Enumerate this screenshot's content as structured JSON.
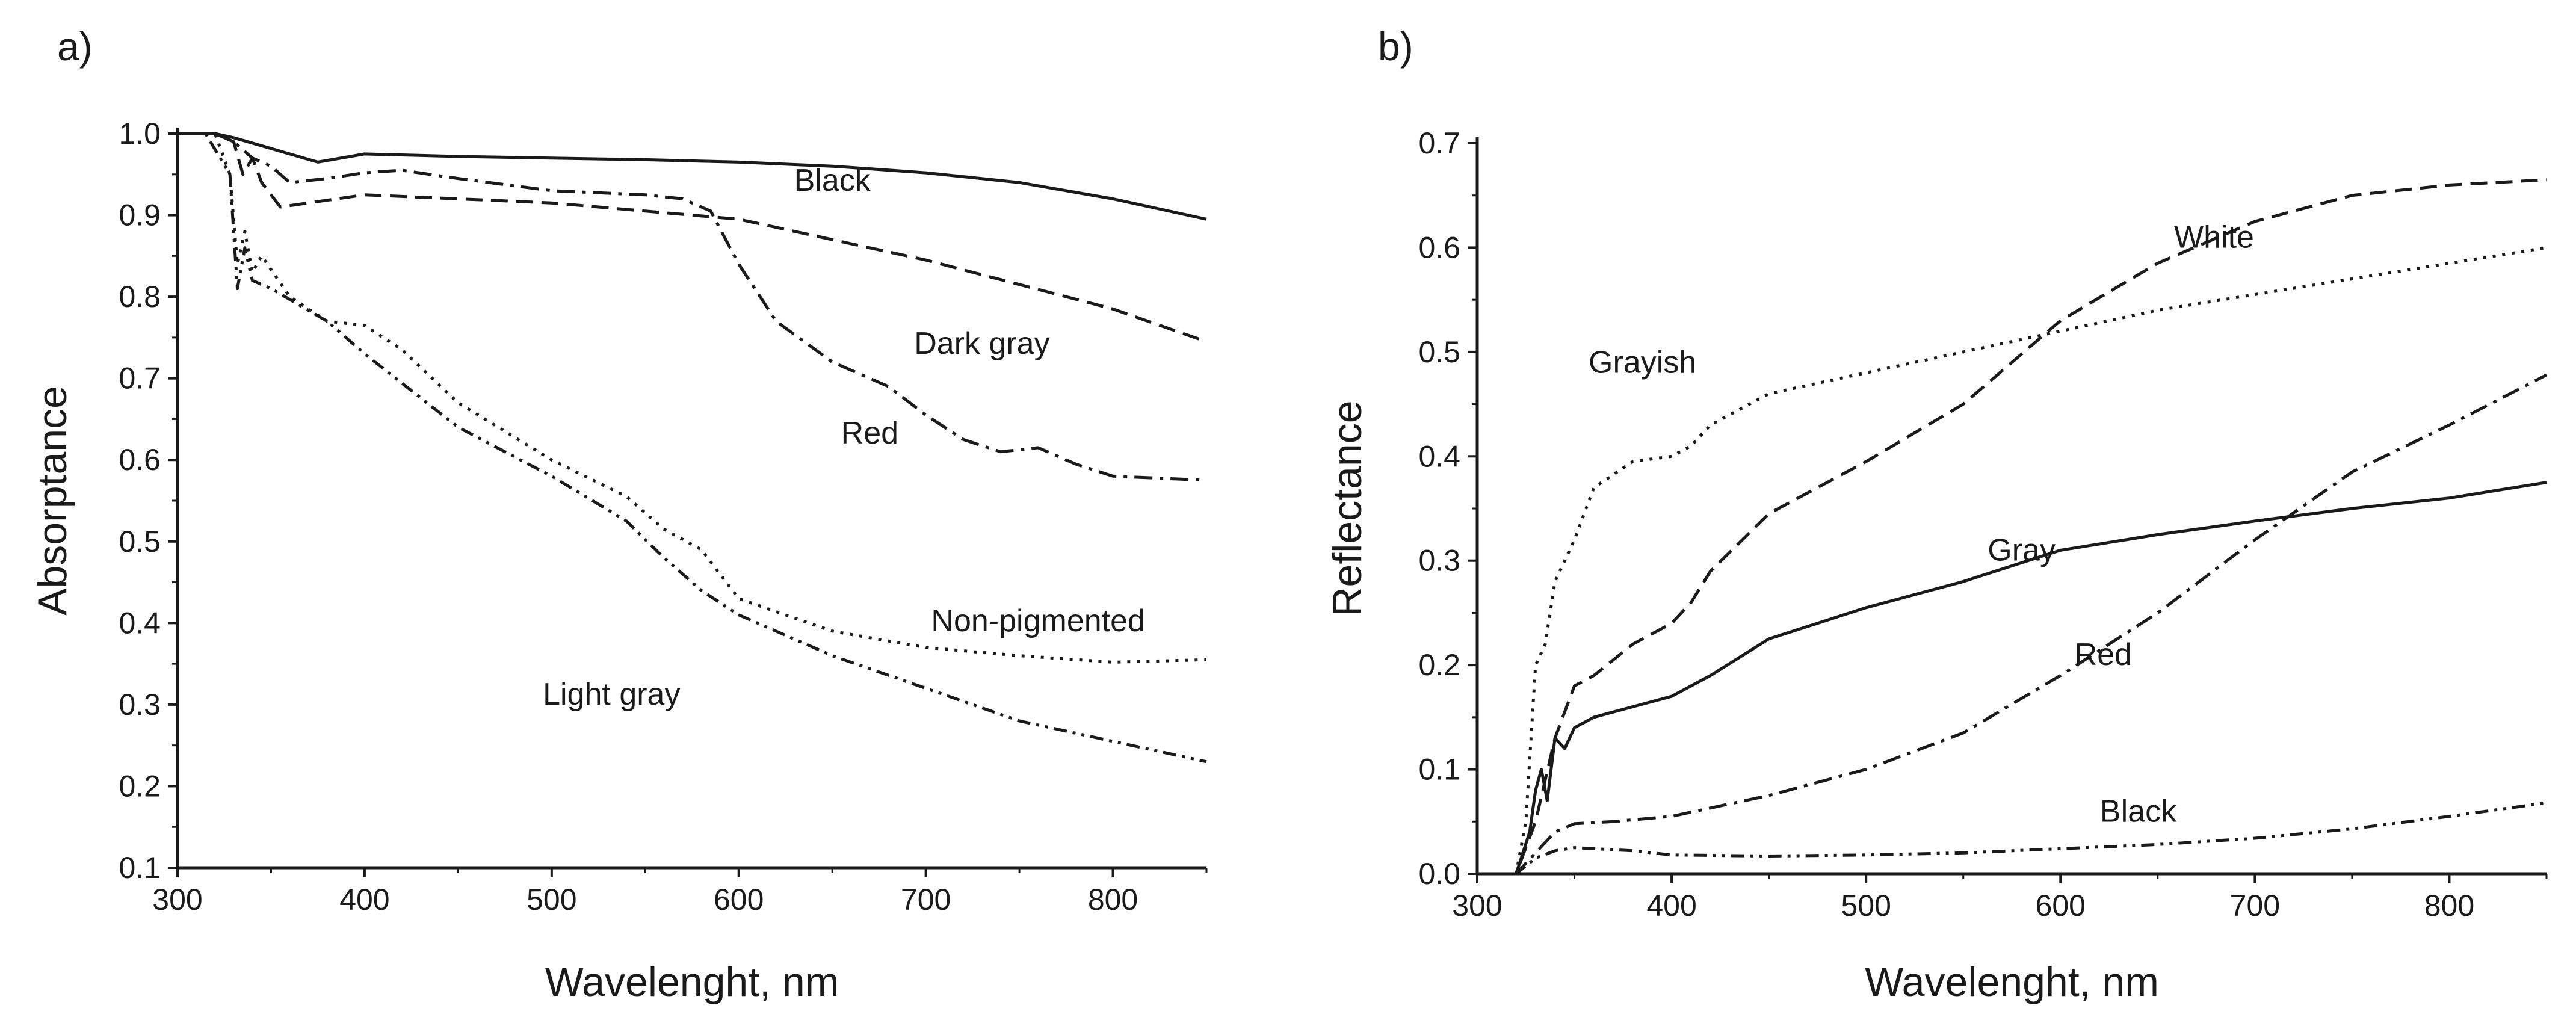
{
  "chart_data": [
    {
      "type": "line",
      "panel_label": "a)",
      "xlabel": "Wavelenght, nm",
      "ylabel": "Absorptance",
      "xlim": [
        300,
        850
      ],
      "ylim": [
        0.1,
        1.0
      ],
      "grid": false,
      "x_ticks": [
        300,
        400,
        500,
        600,
        700,
        800
      ],
      "y_ticks": [
        0.1,
        0.2,
        0.3,
        0.4,
        0.5,
        0.6,
        0.7,
        0.8,
        0.9,
        1.0
      ],
      "x_tick_labels": [
        "300",
        "400",
        "500",
        "600",
        "700",
        "800"
      ],
      "y_tick_labels": [
        "0.1",
        "0.2",
        "0.3",
        "0.4",
        "0.5",
        "0.6",
        "0.7",
        "0.8",
        "0.9",
        "1.0"
      ],
      "series": [
        {
          "name": "Black",
          "label": "Black",
          "dash": "solid",
          "label_at": [
            650,
            0.93
          ],
          "x": [
            300,
            320,
            330,
            345,
            360,
            375,
            400,
            450,
            500,
            550,
            600,
            650,
            700,
            750,
            800,
            850
          ],
          "y": [
            1.0,
            1.0,
            0.995,
            0.985,
            0.975,
            0.965,
            0.975,
            0.972,
            0.97,
            0.968,
            0.965,
            0.96,
            0.952,
            0.94,
            0.92,
            0.895
          ]
        },
        {
          "name": "Dark gray",
          "label": "Dark gray",
          "dash": "dashed",
          "label_at": [
            730,
            0.73
          ],
          "x": [
            300,
            320,
            330,
            335,
            340,
            345,
            355,
            370,
            400,
            450,
            500,
            550,
            600,
            650,
            700,
            750,
            800,
            850
          ],
          "y": [
            1.0,
            1.0,
            0.99,
            0.95,
            0.97,
            0.94,
            0.91,
            0.915,
            0.925,
            0.92,
            0.915,
            0.905,
            0.895,
            0.87,
            0.845,
            0.815,
            0.785,
            0.745
          ]
        },
        {
          "name": "Red",
          "label": "Red",
          "dash": "dashdot",
          "label_at": [
            670,
            0.62
          ],
          "x": [
            300,
            320,
            330,
            340,
            350,
            360,
            380,
            400,
            420,
            450,
            500,
            550,
            570,
            585,
            600,
            620,
            650,
            680,
            700,
            720,
            740,
            760,
            780,
            800,
            850
          ],
          "y": [
            1.0,
            1.0,
            0.99,
            0.97,
            0.96,
            0.94,
            0.945,
            0.952,
            0.955,
            0.945,
            0.93,
            0.925,
            0.92,
            0.905,
            0.84,
            0.77,
            0.72,
            0.69,
            0.655,
            0.625,
            0.61,
            0.615,
            0.595,
            0.58,
            0.575
          ]
        },
        {
          "name": "Non-pigmented",
          "label": "Non-pigmented",
          "dash": "dotted",
          "label_at": [
            760,
            0.39
          ],
          "x": [
            300,
            320,
            328,
            332,
            336,
            340,
            345,
            360,
            380,
            400,
            420,
            450,
            500,
            540,
            560,
            580,
            600,
            650,
            700,
            750,
            800,
            850
          ],
          "y": [
            1.0,
            1.0,
            0.95,
            0.84,
            0.88,
            0.83,
            0.85,
            0.8,
            0.77,
            0.765,
            0.735,
            0.67,
            0.6,
            0.555,
            0.515,
            0.49,
            0.43,
            0.39,
            0.37,
            0.36,
            0.352,
            0.355
          ]
        },
        {
          "name": "Light gray",
          "label": "Light gray",
          "dash": "dashdotdot",
          "label_at": [
            532,
            0.3
          ],
          "x": [
            300,
            315,
            328,
            332,
            336,
            340,
            350,
            380,
            400,
            450,
            500,
            540,
            560,
            580,
            600,
            650,
            700,
            750,
            800,
            850
          ],
          "y": [
            1.0,
            1.0,
            0.95,
            0.81,
            0.86,
            0.82,
            0.81,
            0.77,
            0.73,
            0.64,
            0.58,
            0.525,
            0.48,
            0.44,
            0.41,
            0.36,
            0.32,
            0.28,
            0.255,
            0.23
          ]
        }
      ]
    },
    {
      "type": "line",
      "panel_label": "b)",
      "xlabel": "Wavelenght, nm",
      "ylabel": "Reflectance",
      "xlim": [
        300,
        850
      ],
      "ylim": [
        0.0,
        0.7
      ],
      "grid": false,
      "x_ticks": [
        300,
        400,
        500,
        600,
        700,
        800
      ],
      "y_ticks": [
        0.0,
        0.1,
        0.2,
        0.3,
        0.4,
        0.5,
        0.6,
        0.7
      ],
      "x_tick_labels": [
        "300",
        "400",
        "500",
        "600",
        "700",
        "800"
      ],
      "y_tick_labels": [
        "0.0",
        "0.1",
        "0.2",
        "0.3",
        "0.4",
        "0.5",
        "0.6",
        "0.7"
      ],
      "series": [
        {
          "name": "White",
          "label": "White",
          "dash": "dashed",
          "label_at": [
            679,
            0.6
          ],
          "x": [
            300,
            320,
            330,
            340,
            350,
            360,
            380,
            400,
            410,
            420,
            450,
            500,
            550,
            600,
            650,
            700,
            750,
            800,
            850
          ],
          "y": [
            0.0,
            0.0,
            0.05,
            0.13,
            0.18,
            0.19,
            0.22,
            0.24,
            0.26,
            0.29,
            0.345,
            0.395,
            0.45,
            0.53,
            0.585,
            0.625,
            0.65,
            0.66,
            0.665
          ]
        },
        {
          "name": "Grayish",
          "label": "Grayish",
          "dash": "dotted",
          "label_at": [
            385,
            0.48
          ],
          "x": [
            300,
            320,
            325,
            330,
            335,
            340,
            345,
            350,
            360,
            380,
            400,
            410,
            420,
            450,
            500,
            550,
            600,
            650,
            700,
            750,
            800,
            850
          ],
          "y": [
            0.0,
            0.0,
            0.05,
            0.2,
            0.22,
            0.28,
            0.3,
            0.32,
            0.37,
            0.395,
            0.4,
            0.41,
            0.43,
            0.46,
            0.48,
            0.5,
            0.52,
            0.54,
            0.555,
            0.57,
            0.585,
            0.6
          ]
        },
        {
          "name": "Gray",
          "label": "Gray",
          "dash": "solid",
          "label_at": [
            580,
            0.3
          ],
          "x": [
            300,
            320,
            327,
            330,
            333,
            336,
            340,
            345,
            350,
            360,
            380,
            400,
            420,
            450,
            500,
            550,
            600,
            650,
            700,
            750,
            800,
            850
          ],
          "y": [
            0.0,
            0.0,
            0.04,
            0.08,
            0.1,
            0.07,
            0.13,
            0.12,
            0.14,
            0.15,
            0.16,
            0.17,
            0.19,
            0.225,
            0.255,
            0.28,
            0.31,
            0.325,
            0.338,
            0.35,
            0.36,
            0.375
          ]
        },
        {
          "name": "Red",
          "label": "Red",
          "dash": "dashdot",
          "label_at": [
            622,
            0.2
          ],
          "x": [
            300,
            320,
            330,
            340,
            350,
            370,
            400,
            450,
            500,
            550,
            600,
            650,
            700,
            750,
            800,
            850
          ],
          "y": [
            0.0,
            0.0,
            0.02,
            0.04,
            0.048,
            0.05,
            0.055,
            0.075,
            0.1,
            0.135,
            0.19,
            0.25,
            0.32,
            0.385,
            0.43,
            0.478
          ]
        },
        {
          "name": "Black",
          "label": "Black",
          "dash": "dashdotdot",
          "label_at": [
            640,
            0.05
          ],
          "x": [
            300,
            320,
            330,
            340,
            350,
            380,
            400,
            450,
            500,
            550,
            600,
            650,
            700,
            750,
            800,
            850
          ],
          "y": [
            0.0,
            0.0,
            0.015,
            0.022,
            0.025,
            0.022,
            0.018,
            0.017,
            0.018,
            0.02,
            0.024,
            0.028,
            0.034,
            0.043,
            0.055,
            0.068
          ]
        }
      ]
    }
  ]
}
